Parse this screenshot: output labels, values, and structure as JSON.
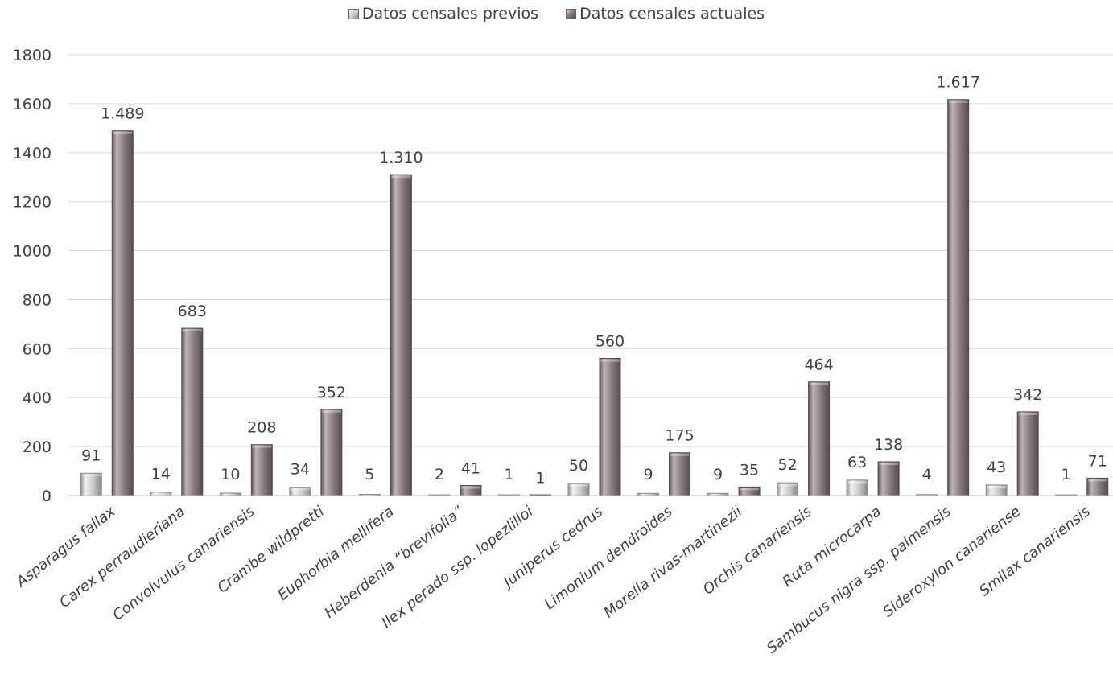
{
  "chart_data": {
    "type": "bar",
    "title": "",
    "xlabel": "",
    "ylabel": "",
    "ylim": [
      0,
      1800
    ],
    "yticks": [
      0,
      200,
      400,
      600,
      800,
      1000,
      1200,
      1400,
      1600,
      1800
    ],
    "grid": true,
    "legend_position": "top-center",
    "categories": [
      "Asparagus fallax",
      "Carex perraudieriana",
      "Convolvulus canariensis",
      "Crambe wildpretti",
      "Euphorbia mellifera",
      "Heberdenia “brevifolia”",
      "Ilex perado ssp. lopezlilloi",
      "Juniperus cedrus",
      "Limonium dendroides",
      "Morella rivas-martinezii",
      "Orchis canariensis",
      "Ruta microcarpa",
      "Sambucus nigra ssp. palmensis",
      "Sideroxylon canariense",
      "Smilax canariensis"
    ],
    "series": [
      {
        "name": "Datos censales previos",
        "color": "#c9c6c7",
        "values": [
          91,
          14,
          10,
          34,
          5,
          2,
          1,
          50,
          9,
          9,
          52,
          63,
          4,
          43,
          1
        ],
        "labels": [
          "91",
          "14",
          "10",
          "34",
          "5",
          "2",
          "1",
          "50",
          "9",
          "9",
          "52",
          "63",
          "4",
          "43",
          "1"
        ]
      },
      {
        "name": "Datos censales actuales",
        "color": "#7d7175",
        "values": [
          1489,
          683,
          208,
          352,
          1310,
          41,
          1,
          560,
          175,
          35,
          464,
          138,
          1617,
          342,
          71
        ],
        "labels": [
          "1.489",
          "683",
          "208",
          "352",
          "1.310",
          "41",
          "1",
          "560",
          "175",
          "35",
          "464",
          "138",
          "1.617",
          "342",
          "71"
        ]
      }
    ]
  }
}
